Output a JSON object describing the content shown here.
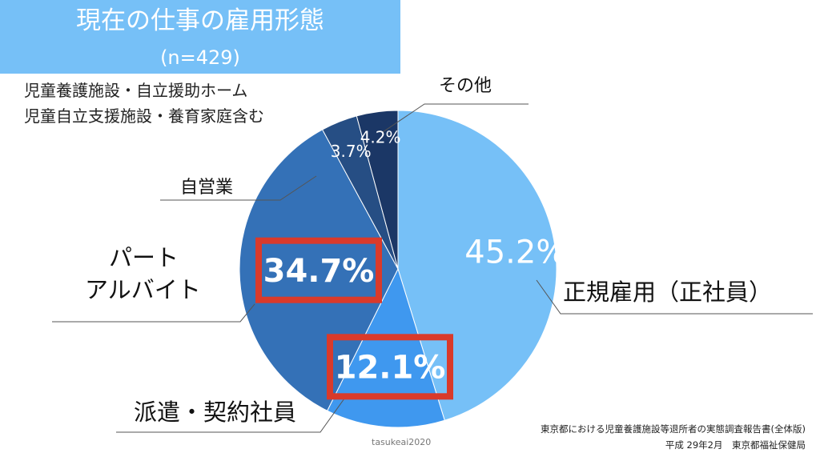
{
  "title": "現在の仕事の雇用形態",
  "subtitle": "(n=429)",
  "notes": [
    "児童養護施設・自立援助ホーム",
    "児童自立支援施設・養育家庭含む"
  ],
  "chart_data": {
    "type": "pie",
    "start_angle_deg": 0,
    "direction": "clockwise",
    "slices": [
      {
        "label": "正規雇用（正社員）",
        "value": 45.2,
        "value_label": "45.2%",
        "color": "#76c0f7",
        "highlighted": false
      },
      {
        "label": "派遣・契約社員",
        "value": 12.1,
        "value_label": "12.1%",
        "color": "#3f98ef",
        "highlighted": true
      },
      {
        "label": "パート アルバイト",
        "label_lines": [
          "パート",
          "アルバイト"
        ],
        "value": 34.7,
        "value_label": "34.7%",
        "color": "#3471b7",
        "highlighted": true
      },
      {
        "label": "自営業",
        "value": 3.7,
        "value_label": "3.7%",
        "color": "#264e84",
        "highlighted": false
      },
      {
        "label": "その他",
        "value": 4.2,
        "value_label": "4.2%",
        "color": "#1b3766",
        "highlighted": false
      }
    ],
    "highlight_color": "#d93a2b"
  },
  "source_lines": [
    "東京都における児童養護施設等退所者の実態調査報告書(全体版)",
    "平成 29年2月　東京都福祉保健局"
  ],
  "watermark": "tasukeai2020"
}
